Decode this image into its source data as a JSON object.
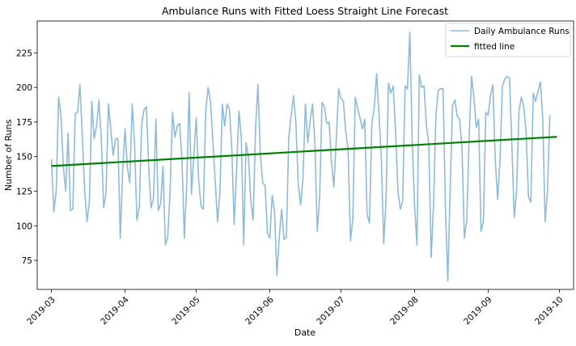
{
  "chart_data": {
    "type": "line",
    "title": "Ambulance Runs with Fitted Loess Straight Line Forecast",
    "xlabel": "Date",
    "ylabel": "Number of Runs",
    "xlim": [
      "2019-02-23",
      "2019-10-07"
    ],
    "ylim": [
      54,
      248
    ],
    "yticks": [
      75,
      100,
      125,
      150,
      175,
      200,
      225
    ],
    "xticks": [
      "2019-03",
      "2019-04",
      "2019-05",
      "2019-06",
      "2019-07",
      "2019-08",
      "2019-09",
      "2019-10"
    ],
    "legend_position": "upper-right",
    "series": [
      {
        "name": "Daily Ambulance Runs",
        "color": "#1f77b4",
        "start_date": "2019-03-01",
        "values": [
          148,
          110,
          125,
          193,
          180,
          143,
          125,
          167,
          111,
          112,
          181,
          182,
          202,
          165,
          125,
          103,
          118,
          190,
          163,
          172,
          191,
          163,
          113,
          124,
          188,
          170,
          151,
          163,
          163,
          91,
          140,
          170,
          142,
          131,
          188,
          160,
          104,
          113,
          173,
          184,
          186,
          141,
          113,
          120,
          177,
          111,
          116,
          143,
          86,
          92,
          125,
          182,
          164,
          172,
          174,
          147,
          91,
          130,
          196,
          123,
          151,
          178,
          134,
          114,
          112,
          183,
          200,
          190,
          162,
          132,
          103,
          125,
          188,
          172,
          188,
          184,
          155,
          101,
          140,
          183,
          164,
          86,
          160,
          150,
          118,
          104,
          170,
          202,
          152,
          131,
          129,
          95,
          91,
          122,
          110,
          64,
          92,
          112,
          90,
          92,
          164,
          180,
          194,
          174,
          130,
          115,
          135,
          188,
          160,
          176,
          188,
          160,
          96,
          120,
          189,
          186,
          174,
          175,
          146,
          128,
          162,
          199,
          192,
          190,
          168,
          155,
          89,
          105,
          193,
          185,
          178,
          170,
          177,
          108,
          102,
          174,
          185,
          210,
          181,
          148,
          87,
          120,
          203,
          196,
          201,
          168,
          125,
          112,
          118,
          201,
          199,
          240,
          161,
          115,
          86,
          209,
          200,
          201,
          172,
          159,
          77,
          115,
          180,
          198,
          199,
          199,
          114,
          60,
          126,
          187,
          191,
          179,
          177,
          155,
          91,
          104,
          165,
          208,
          193,
          171,
          177,
          96,
          103,
          182,
          180,
          194,
          202,
          148,
          119,
          147,
          201,
          206,
          208,
          207,
          158,
          106,
          125,
          183,
          193,
          186,
          168,
          121,
          117,
          196,
          190,
          197,
          204,
          178,
          103,
          125,
          180
        ]
      },
      {
        "name": "fitted line",
        "color": "#008000",
        "type": "line",
        "x": [
          "2019-03-01",
          "2019-09-30"
        ],
        "y": [
          143.2,
          164.3
        ]
      }
    ]
  }
}
